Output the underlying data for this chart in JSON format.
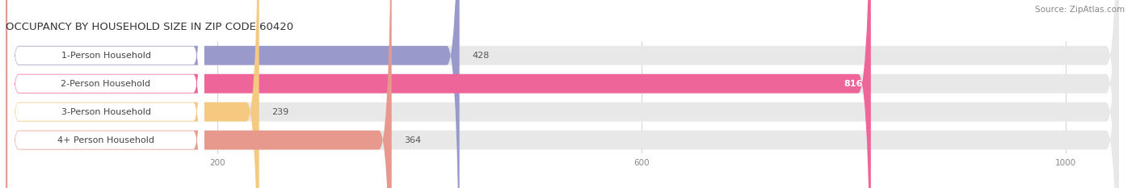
{
  "title": "OCCUPANCY BY HOUSEHOLD SIZE IN ZIP CODE 60420",
  "source": "Source: ZipAtlas.com",
  "categories": [
    "1-Person Household",
    "2-Person Household",
    "3-Person Household",
    "4+ Person Household"
  ],
  "values": [
    428,
    816,
    239,
    364
  ],
  "bar_colors": [
    "#9999cc",
    "#ee6699",
    "#f5c97f",
    "#e8998d"
  ],
  "bar_bg_color": "#e8e8e8",
  "xlim": [
    0,
    1050
  ],
  "xticks": [
    200,
    600,
    1000
  ],
  "figsize": [
    14.06,
    2.33
  ],
  "title_fontsize": 9.5,
  "source_fontsize": 7.5,
  "label_fontsize": 8,
  "value_fontsize": 8,
  "bar_height": 0.68,
  "background_color": "#ffffff",
  "label_box_color": "#f0f0f0"
}
